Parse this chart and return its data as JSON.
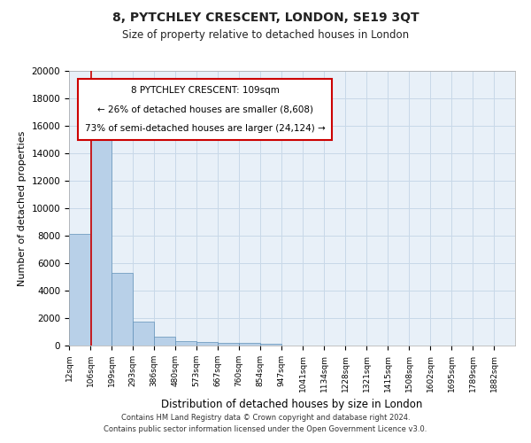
{
  "title": "8, PYTCHLEY CRESCENT, LONDON, SE19 3QT",
  "subtitle": "Size of property relative to detached houses in London",
  "xlabel": "Distribution of detached houses by size in London",
  "ylabel": "Number of detached properties",
  "bin_labels": [
    "12sqm",
    "106sqm",
    "199sqm",
    "293sqm",
    "386sqm",
    "480sqm",
    "573sqm",
    "667sqm",
    "760sqm",
    "854sqm",
    "947sqm",
    "1041sqm",
    "1134sqm",
    "1228sqm",
    "1321sqm",
    "1415sqm",
    "1508sqm",
    "1602sqm",
    "1695sqm",
    "1789sqm",
    "1882sqm"
  ],
  "bar_heights": [
    8100,
    17000,
    5300,
    1750,
    650,
    340,
    270,
    200,
    180,
    160,
    0,
    0,
    0,
    0,
    0,
    0,
    0,
    0,
    0,
    0,
    0
  ],
  "bar_color": "#b8d0e8",
  "bar_edge_color": "#6090b8",
  "ylim": [
    0,
    20000
  ],
  "yticks": [
    0,
    2000,
    4000,
    6000,
    8000,
    10000,
    12000,
    14000,
    16000,
    18000,
    20000
  ],
  "annotation_text_line1": "8 PYTCHLEY CRESCENT: 109sqm",
  "annotation_text_line2": "← 26% of detached houses are smaller (8,608)",
  "annotation_text_line3": "73% of semi-detached houses are larger (24,124) →",
  "annotation_box_color": "#ffffff",
  "annotation_box_edge_color": "#cc0000",
  "red_line_color": "#cc0000",
  "grid_color": "#c8d8e8",
  "background_color": "#e8f0f8",
  "footer_line1": "Contains HM Land Registry data © Crown copyright and database right 2024.",
  "footer_line2": "Contains public sector information licensed under the Open Government Licence v3.0."
}
